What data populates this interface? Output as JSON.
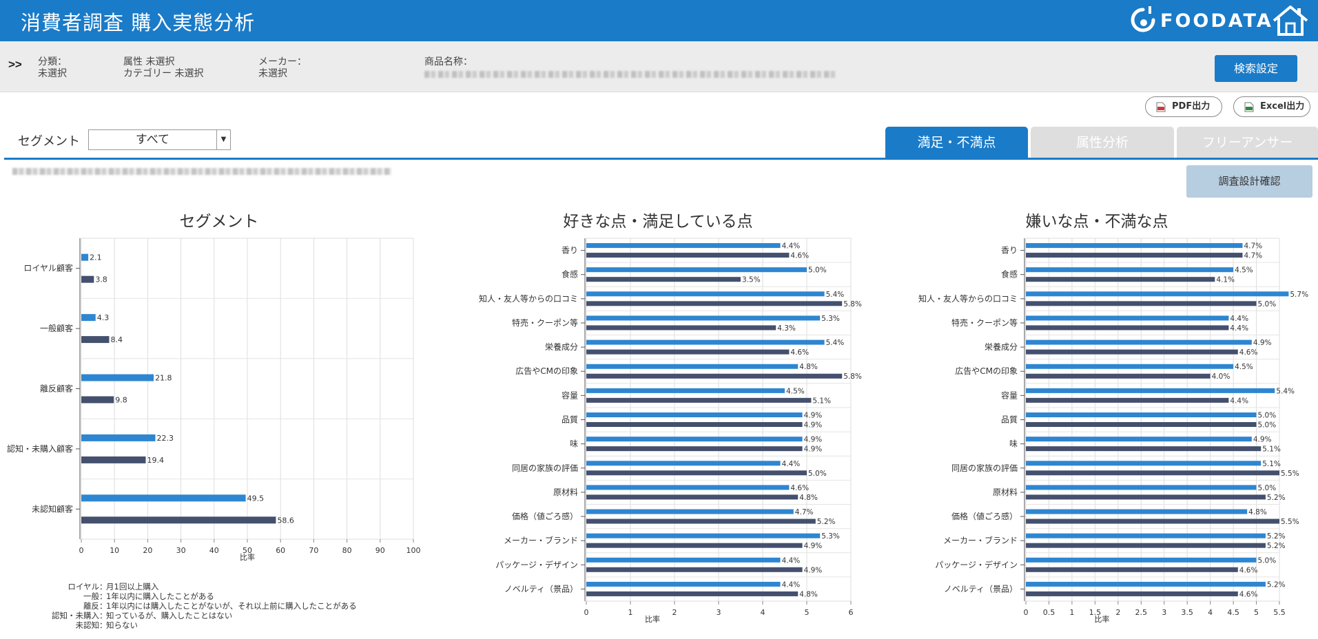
{
  "app": {
    "title": "消費者調査 購入実態分析",
    "logo_text": "FOODATA"
  },
  "filters": {
    "expand_label": ">>",
    "category_label": "分類：",
    "category_value": "未選択",
    "attribute_line1": "属性 未選択",
    "attribute_line2": "カテゴリー 未選択",
    "maker_label": "メーカー：",
    "maker_value": "未選択",
    "product_label": "商品名称：",
    "search_button": "検索設定"
  },
  "exports": {
    "pdf": "PDF出力",
    "excel": "Excel出力"
  },
  "segment": {
    "label": "セグメント",
    "selected": "すべて"
  },
  "tabs": [
    {
      "label": "満足・不満点",
      "active": true
    },
    {
      "label": "属性分析",
      "active": false
    },
    {
      "label": "フリーアンサー",
      "active": false
    }
  ],
  "survey_button": "調査設計確認",
  "colors": {
    "brand_blue": "#1a7bc8",
    "series_light": "#2e86d1",
    "series_dark": "#44506e"
  },
  "chart_data": [
    {
      "type": "bar",
      "orientation": "horizontal",
      "title": "セグメント",
      "xlabel": "比率",
      "xlim": [
        0,
        100
      ],
      "xticks": [
        0,
        10,
        20,
        30,
        40,
        50,
        60,
        70,
        80,
        90,
        100
      ],
      "categories": [
        "ロイヤル顧客",
        "一般顧客",
        "離反顧客",
        "認知・未購入顧客",
        "未認知顧客"
      ],
      "series": [
        {
          "values": [
            2.1,
            4.3,
            21.8,
            22.3,
            49.5
          ],
          "labels": [
            "2.1",
            "4.3",
            "21.8",
            "22.3",
            "49.5"
          ]
        },
        {
          "values": [
            3.8,
            8.4,
            9.8,
            19.4,
            58.6
          ],
          "labels": [
            "3.8",
            "8.4",
            "9.8",
            "19.4",
            "58.6"
          ]
        }
      ],
      "grid": true
    },
    {
      "type": "bar",
      "orientation": "horizontal",
      "title": "好きな点・満足している点",
      "xlabel": "比率",
      "xlim": [
        0,
        6
      ],
      "xticks": [
        0,
        1,
        2,
        3,
        4,
        5,
        6
      ],
      "categories": [
        "香り",
        "食感",
        "知人・友人等からの口コミ",
        "特売・クーポン等",
        "栄養成分",
        "広告やCMの印象",
        "容量",
        "品質",
        "味",
        "同居の家族の評価",
        "原材料",
        "価格（値ごろ感）",
        "メーカー・ブランド",
        "パッケージ・デザイン",
        "ノベルティ（景品）"
      ],
      "series": [
        {
          "values": [
            4.4,
            5.0,
            5.4,
            5.3,
            5.4,
            4.8,
            4.5,
            4.9,
            4.9,
            4.4,
            4.6,
            4.7,
            5.3,
            4.4,
            4.4
          ],
          "labels": [
            "4.4%",
            "5.0%",
            "5.4%",
            "5.3%",
            "5.4%",
            "4.8%",
            "4.5%",
            "4.9%",
            "4.9%",
            "4.4%",
            "4.6%",
            "4.7%",
            "5.3%",
            "4.4%",
            "4.4%"
          ]
        },
        {
          "values": [
            4.6,
            3.5,
            5.8,
            4.3,
            4.6,
            5.8,
            5.1,
            4.9,
            4.9,
            5.0,
            4.8,
            5.2,
            4.9,
            4.9,
            4.8
          ],
          "labels": [
            "4.6%",
            "3.5%",
            "5.8%",
            "4.3%",
            "4.6%",
            "5.8%",
            "5.1%",
            "4.9%",
            "4.9%",
            "5.0%",
            "4.8%",
            "5.2%",
            "4.9%",
            "4.9%",
            "4.8%"
          ]
        }
      ],
      "grid": true
    },
    {
      "type": "bar",
      "orientation": "horizontal",
      "title": "嫌いな点・不満な点",
      "xlabel": "比率",
      "xlim": [
        0,
        5.5
      ],
      "xticks": [
        0,
        0.5,
        1,
        1.5,
        2,
        2.5,
        3,
        3.5,
        4,
        4.5,
        5,
        5.5
      ],
      "categories": [
        "香り",
        "食感",
        "知人・友人等からの口コミ",
        "特売・クーポン等",
        "栄養成分",
        "広告やCMの印象",
        "容量",
        "品質",
        "味",
        "同居の家族の評価",
        "原材料",
        "価格（値ごろ感）",
        "メーカー・ブランド",
        "パッケージ・デザイン",
        "ノベルティ（景品）"
      ],
      "series": [
        {
          "values": [
            4.7,
            4.5,
            5.7,
            4.4,
            4.9,
            4.5,
            5.4,
            5.0,
            4.9,
            5.1,
            5.0,
            4.8,
            5.2,
            5.0,
            5.2
          ],
          "labels": [
            "4.7%",
            "4.5%",
            "5.7%",
            "4.4%",
            "4.9%",
            "4.5%",
            "5.4%",
            "5.0%",
            "4.9%",
            "5.1%",
            "5.0%",
            "4.8%",
            "5.2%",
            "5.0%",
            "5.2%"
          ]
        },
        {
          "values": [
            4.7,
            4.1,
            5.0,
            4.4,
            4.6,
            4.0,
            4.4,
            5.0,
            5.1,
            5.5,
            5.2,
            5.5,
            5.2,
            4.6,
            4.6
          ],
          "labels": [
            "4.7%",
            "4.1%",
            "5.0%",
            "4.4%",
            "4.6%",
            "4.0%",
            "4.4%",
            "5.0%",
            "5.1%",
            "5.5%",
            "5.2%",
            "5.5%",
            "5.2%",
            "4.6%",
            "4.6%"
          ]
        }
      ],
      "grid": true
    }
  ],
  "segment_notes": [
    {
      "key": "ロイヤル",
      "desc": "月1回以上購入"
    },
    {
      "key": "一般",
      "desc": "1年以内に購入したことがある"
    },
    {
      "key": "離反",
      "desc": "1年以内には購入したことがないが、それ以上前に購入したことがある"
    },
    {
      "key": "認知・未購入",
      "desc": "知っているが、購入したことはない"
    },
    {
      "key": "未認知",
      "desc": "知らない"
    }
  ]
}
